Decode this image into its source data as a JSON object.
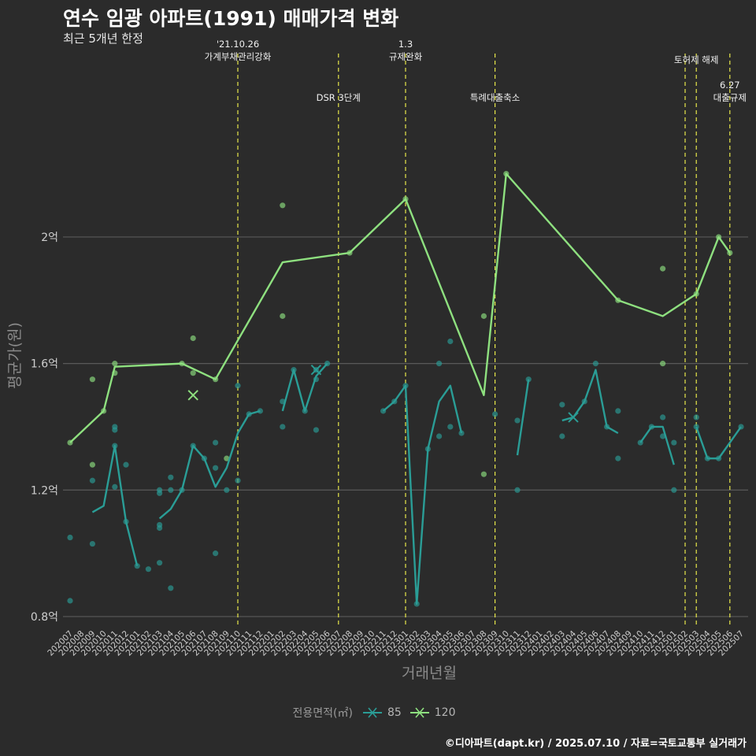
{
  "chart_data": {
    "type": "line",
    "title": "연수 임광 아파트(1991) 매매가격 변화",
    "subtitle": "최근 5개년 한정",
    "xlabel": "거래년월",
    "ylabel": "평균가(원)",
    "yticks": [
      {
        "value": 0.8,
        "label": "0.8억"
      },
      {
        "value": 1.2,
        "label": "1.2억"
      },
      {
        "value": 1.6,
        "label": "1.6억"
      },
      {
        "value": 2.0,
        "label": "2억"
      }
    ],
    "ylim": [
      0.77,
      2.58
    ],
    "grid": true,
    "legend_title": "전용면적(㎡)",
    "legend_position": "bottom",
    "categories": [
      "202007",
      "202008",
      "202009",
      "202010",
      "202011",
      "202012",
      "202101",
      "202102",
      "202103",
      "202104",
      "202105",
      "202106",
      "202107",
      "202108",
      "202109",
      "202110",
      "202111",
      "202112",
      "202201",
      "202202",
      "202203",
      "202204",
      "202205",
      "202206",
      "202207",
      "202208",
      "202209",
      "202210",
      "202211",
      "202212",
      "202301",
      "202302",
      "202303",
      "202304",
      "202305",
      "202306",
      "202307",
      "202308",
      "202309",
      "202310",
      "202311",
      "202312",
      "202401",
      "202402",
      "202403",
      "202404",
      "202405",
      "202406",
      "202407",
      "202408",
      "202409",
      "202410",
      "202411",
      "202412",
      "202501",
      "202502",
      "202503",
      "202504",
      "202505",
      "202506",
      "202507"
    ],
    "series": [
      {
        "name": "85",
        "color": "#2a9d96",
        "lines": [
          [
            [
              2,
              1.13
            ],
            [
              3,
              1.15
            ],
            [
              4,
              1.34
            ],
            [
              5,
              1.1
            ],
            [
              6,
              0.96
            ]
          ],
          [
            [
              8,
              1.11
            ],
            [
              9,
              1.14
            ],
            [
              10,
              1.2
            ],
            [
              11,
              1.34
            ],
            [
              12,
              1.3
            ],
            [
              13,
              1.21
            ],
            [
              14,
              1.27
            ],
            [
              15,
              1.38
            ],
            [
              16,
              1.44
            ],
            [
              17,
              1.45
            ]
          ],
          [
            [
              19,
              1.45
            ],
            [
              20,
              1.58
            ],
            [
              21,
              1.45
            ],
            [
              22,
              1.56
            ],
            [
              23,
              1.6
            ]
          ],
          [
            [
              28,
              1.45
            ],
            [
              29,
              1.48
            ],
            [
              30,
              1.53
            ],
            [
              31,
              0.84
            ],
            [
              32,
              1.33
            ],
            [
              33,
              1.48
            ],
            [
              34,
              1.53
            ],
            [
              35,
              1.38
            ]
          ],
          [
            [
              40,
              1.31
            ],
            [
              41,
              1.55
            ]
          ],
          [
            [
              44,
              1.42
            ],
            [
              45,
              1.43
            ],
            [
              46,
              1.48
            ],
            [
              47,
              1.58
            ],
            [
              48,
              1.4
            ],
            [
              49,
              1.38
            ]
          ],
          [
            [
              51,
              1.35
            ],
            [
              52,
              1.4
            ],
            [
              53,
              1.4
            ],
            [
              54,
              1.28
            ]
          ],
          [
            [
              56,
              1.4
            ],
            [
              57,
              1.3
            ],
            [
              58,
              1.3
            ],
            [
              59,
              1.35
            ],
            [
              60,
              1.4
            ]
          ]
        ],
        "points": [
          [
            0,
            1.05
          ],
          [
            0,
            0.85
          ],
          [
            2,
            1.03
          ],
          [
            2,
            1.23
          ],
          [
            4,
            1.39
          ],
          [
            4,
            1.4
          ],
          [
            4,
            1.34
          ],
          [
            4,
            1.21
          ],
          [
            5,
            1.28
          ],
          [
            5,
            1.1
          ],
          [
            6,
            0.96
          ],
          [
            7,
            0.95
          ],
          [
            8,
            1.08
          ],
          [
            8,
            1.09
          ],
          [
            8,
            1.2
          ],
          [
            8,
            1.19
          ],
          [
            8,
            0.97
          ],
          [
            9,
            1.24
          ],
          [
            9,
            1.2
          ],
          [
            9,
            0.89
          ],
          [
            10,
            1.2
          ],
          [
            11,
            1.34
          ],
          [
            12,
            1.3
          ],
          [
            13,
            1.35
          ],
          [
            13,
            1.27
          ],
          [
            13,
            1.0
          ],
          [
            14,
            1.2
          ],
          [
            15,
            1.53
          ],
          [
            15,
            1.23
          ],
          [
            16,
            1.44
          ],
          [
            17,
            1.45
          ],
          [
            19,
            1.48
          ],
          [
            19,
            1.4
          ],
          [
            20,
            1.58
          ],
          [
            21,
            1.45
          ],
          [
            22,
            1.58
          ],
          [
            22,
            1.55
          ],
          [
            22,
            1.39
          ],
          [
            23,
            1.6
          ],
          [
            28,
            1.45
          ],
          [
            29,
            1.48
          ],
          [
            30,
            1.53
          ],
          [
            31,
            0.84
          ],
          [
            32,
            1.33
          ],
          [
            33,
            1.37
          ],
          [
            33,
            1.6
          ],
          [
            34,
            1.67
          ],
          [
            34,
            1.4
          ],
          [
            35,
            1.38
          ],
          [
            38,
            1.44
          ],
          [
            40,
            1.42
          ],
          [
            40,
            1.2
          ],
          [
            41,
            1.55
          ],
          [
            44,
            1.47
          ],
          [
            44,
            1.37
          ],
          [
            46,
            1.48
          ],
          [
            47,
            1.6
          ],
          [
            48,
            1.4
          ],
          [
            49,
            1.45
          ],
          [
            49,
            1.3
          ],
          [
            51,
            1.35
          ],
          [
            52,
            1.4
          ],
          [
            53,
            1.43
          ],
          [
            53,
            1.37
          ],
          [
            54,
            1.35
          ],
          [
            54,
            1.2
          ],
          [
            56,
            1.43
          ],
          [
            56,
            1.4
          ],
          [
            57,
            1.3
          ],
          [
            58,
            1.3
          ],
          [
            60,
            1.4
          ]
        ],
        "cancellations": [
          [
            22,
            1.58
          ],
          [
            45,
            1.43
          ]
        ]
      },
      {
        "name": "120",
        "color": "#8ee07f",
        "lines": [
          [
            [
              0,
              1.35
            ],
            [
              3,
              1.45
            ],
            [
              4,
              1.59
            ],
            [
              10,
              1.6
            ],
            [
              13,
              1.55
            ],
            [
              19,
              1.92
            ],
            [
              25,
              1.95
            ],
            [
              30,
              2.12
            ],
            [
              37,
              1.5
            ],
            [
              39,
              2.2
            ],
            [
              49,
              1.8
            ],
            [
              53,
              1.75
            ],
            [
              56,
              1.82
            ],
            [
              58,
              2.0
            ],
            [
              59,
              1.95
            ]
          ]
        ],
        "points": [
          [
            0,
            1.35
          ],
          [
            2,
            1.55
          ],
          [
            2,
            1.28
          ],
          [
            3,
            1.45
          ],
          [
            4,
            1.57
          ],
          [
            4,
            1.6
          ],
          [
            10,
            1.6
          ],
          [
            11,
            1.68
          ],
          [
            11,
            1.57
          ],
          [
            13,
            1.55
          ],
          [
            14,
            1.3
          ],
          [
            19,
            2.1
          ],
          [
            19,
            1.75
          ],
          [
            25,
            1.95
          ],
          [
            30,
            2.12
          ],
          [
            37,
            1.25
          ],
          [
            37,
            1.75
          ],
          [
            39,
            2.2
          ],
          [
            49,
            1.8
          ],
          [
            53,
            1.9
          ],
          [
            53,
            1.6
          ],
          [
            56,
            1.82
          ],
          [
            58,
            2.0
          ],
          [
            59,
            1.95
          ]
        ],
        "cancellations": [
          [
            11,
            1.5
          ]
        ]
      }
    ],
    "events": [
      {
        "x": 15,
        "label": "'21.10.26\n가계부채관리강화",
        "label_y": 2.6
      },
      {
        "x": 24,
        "label": "DSR 3단계",
        "label_y": 2.43
      },
      {
        "x": 30,
        "label": "1.3\n규제완화",
        "label_y": 2.6
      },
      {
        "x": 38,
        "label": "특례대출축소",
        "label_y": 2.43
      },
      {
        "x": 55,
        "label": "",
        "label_y": 2.6
      },
      {
        "x": 56,
        "label": "토허제 해제",
        "label_y": 2.55
      },
      {
        "x": 59,
        "label": "6.27\n대출규제",
        "label_y": 2.47
      }
    ],
    "event_color": "#e8e84a"
  },
  "caption": "©디아파트(dapt.kr) / 2025.07.10 / 자료=국토교통부 실거래가"
}
